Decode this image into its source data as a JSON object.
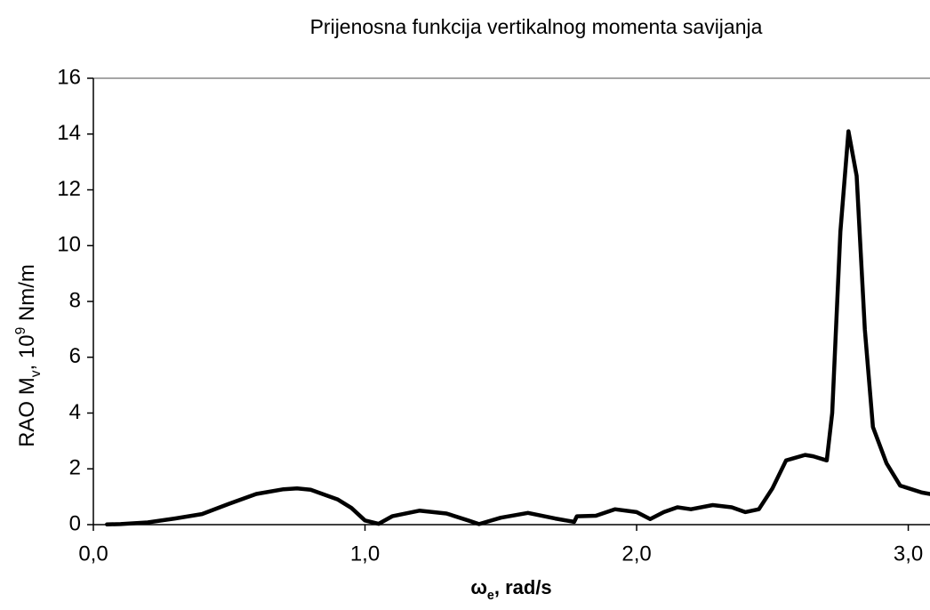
{
  "chart_data": {
    "type": "line",
    "title": "Prijenosna funkcija vertikalnog momenta savijanja",
    "ylabel": [
      "RAO M",
      "v",
      ", 10",
      "9",
      " Nm/m"
    ],
    "xlabel": [
      "ω",
      "e",
      ", rad/s"
    ],
    "xlim": [
      0,
      3.08
    ],
    "ylim": [
      0,
      16
    ],
    "xticks": [
      {
        "value": 0,
        "label": "0,0"
      },
      {
        "value": 1,
        "label": "1,0"
      },
      {
        "value": 2,
        "label": "2,0"
      },
      {
        "value": 3,
        "label": "3,0"
      }
    ],
    "yticks": [
      0,
      2,
      4,
      6,
      8,
      10,
      12,
      14,
      16
    ],
    "grid": false,
    "series": [
      {
        "name": null,
        "color": "#000000",
        "x": [
          0.05,
          0.1,
          0.2,
          0.3,
          0.4,
          0.5,
          0.6,
          0.7,
          0.75,
          0.8,
          0.9,
          0.95,
          1.0,
          1.05,
          1.1,
          1.2,
          1.3,
          1.38,
          1.42,
          1.5,
          1.6,
          1.7,
          1.77,
          1.78,
          1.85,
          1.92,
          2.0,
          2.05,
          2.1,
          2.15,
          2.2,
          2.28,
          2.35,
          2.4,
          2.45,
          2.5,
          2.55,
          2.62,
          2.65,
          2.7,
          2.72,
          2.75,
          2.78,
          2.81,
          2.84,
          2.87,
          2.92,
          2.97,
          3.05,
          3.08
        ],
        "values": [
          0.01,
          0.02,
          0.08,
          0.22,
          0.38,
          0.75,
          1.1,
          1.27,
          1.3,
          1.25,
          0.9,
          0.6,
          0.15,
          0.03,
          0.3,
          0.5,
          0.4,
          0.15,
          0.02,
          0.25,
          0.42,
          0.22,
          0.1,
          0.3,
          0.32,
          0.55,
          0.45,
          0.2,
          0.45,
          0.62,
          0.55,
          0.7,
          0.62,
          0.45,
          0.55,
          1.3,
          2.3,
          2.5,
          2.45,
          2.3,
          4.0,
          10.5,
          14.1,
          12.5,
          7.0,
          3.5,
          2.2,
          1.4,
          1.15,
          1.1
        ]
      }
    ]
  }
}
